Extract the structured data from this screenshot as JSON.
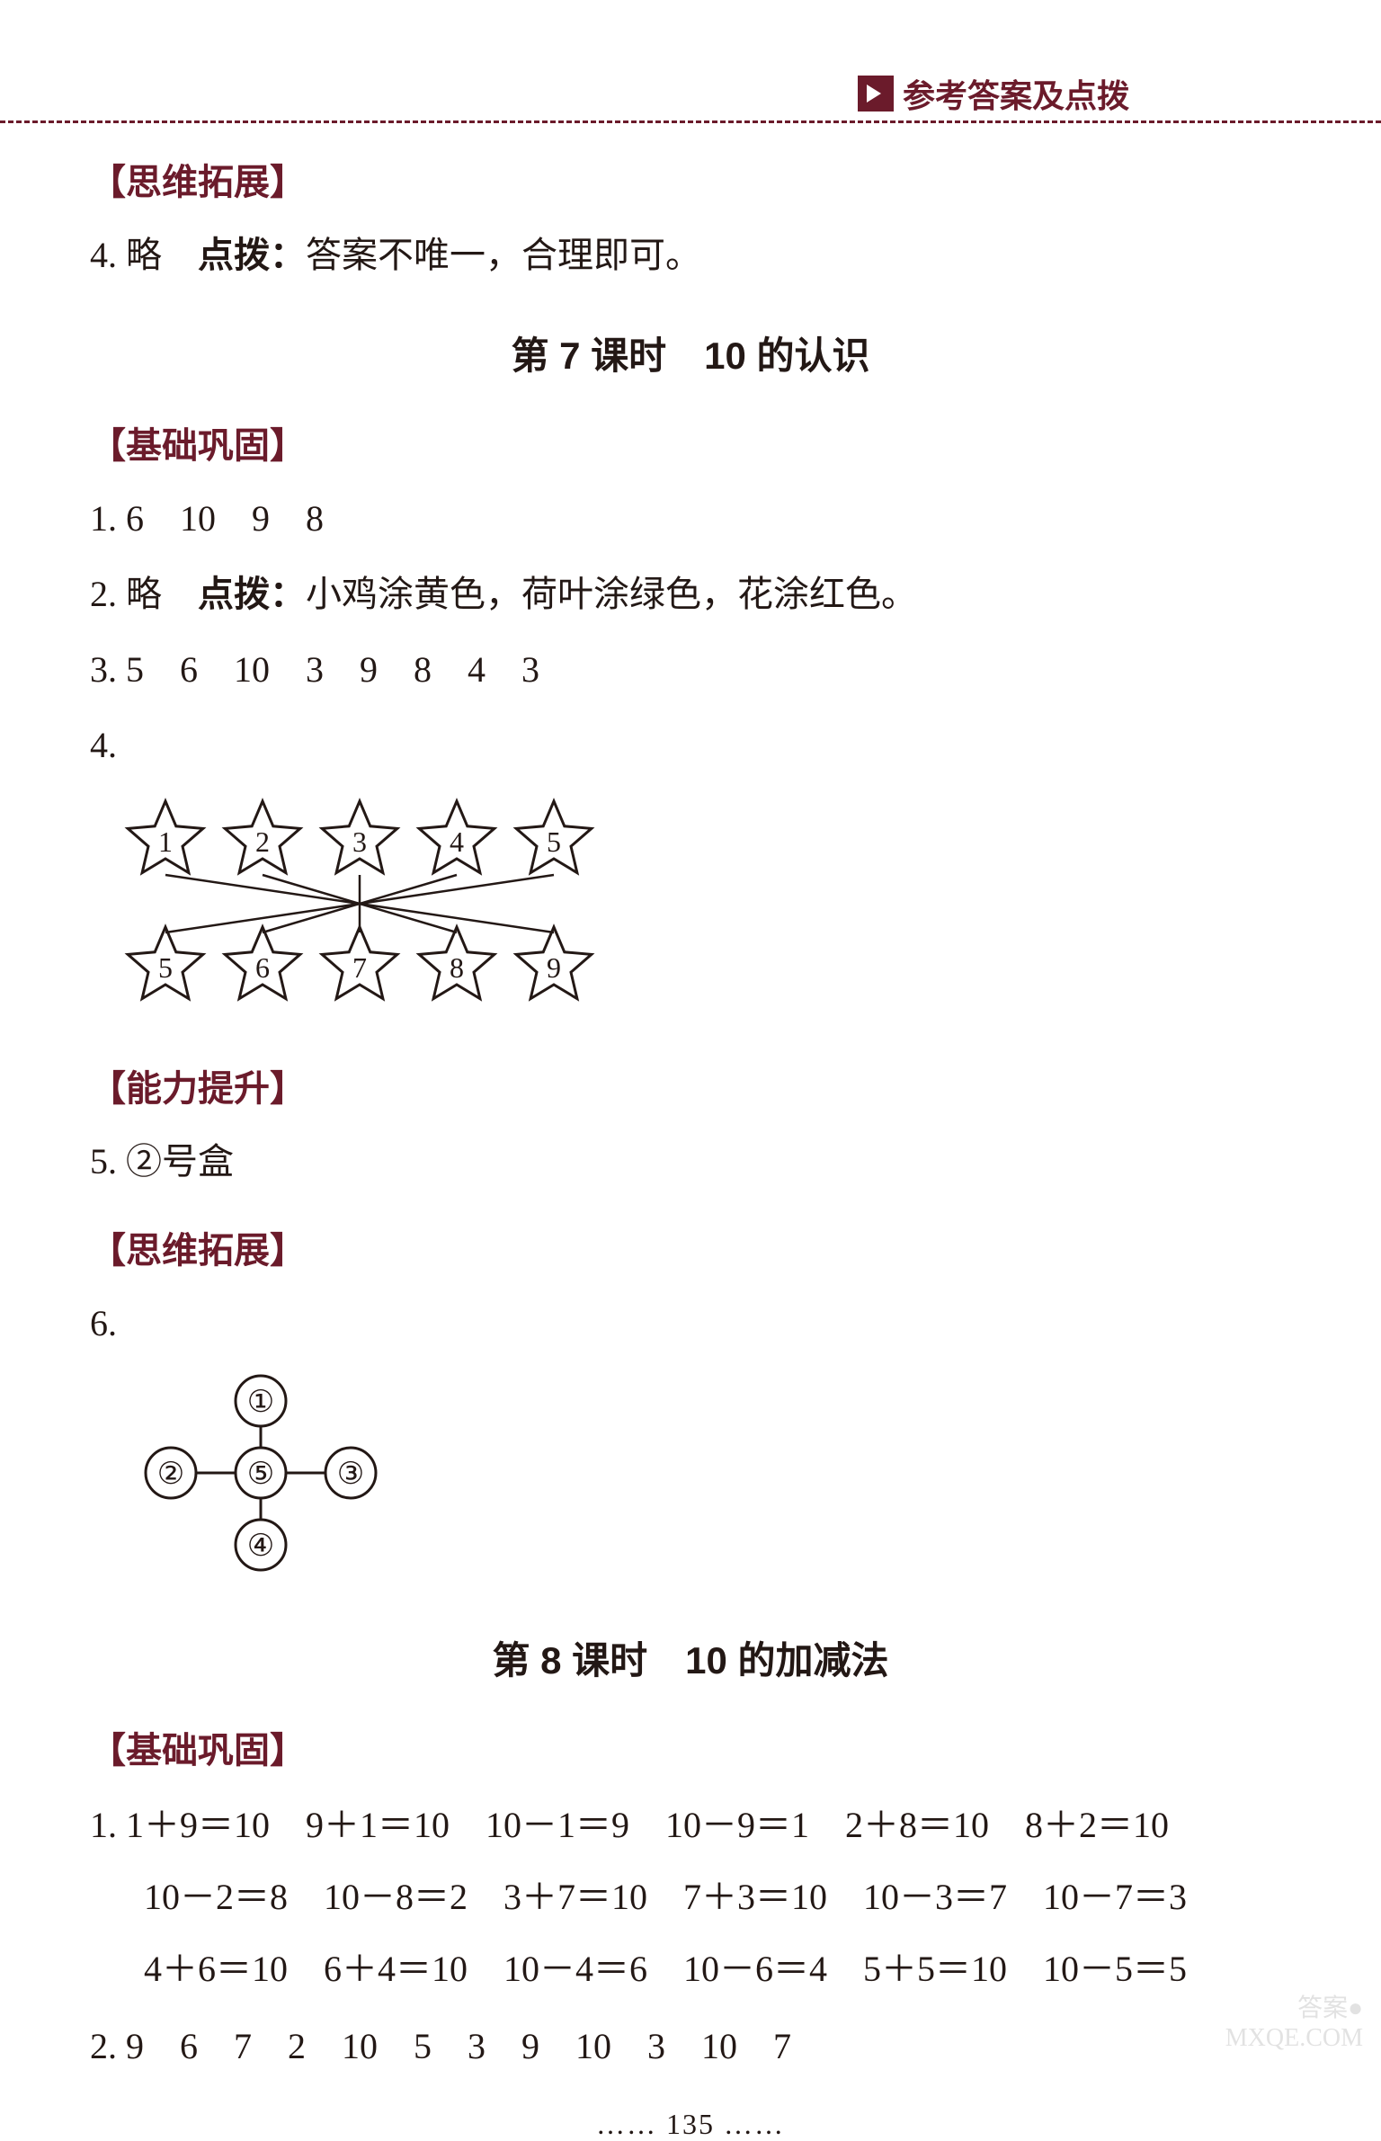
{
  "header": {
    "title": "参考答案及点拨"
  },
  "sections": {
    "s1_heading": "【思维拓展】",
    "s1_item4": "4. 略　",
    "s1_item4_bold": "点拨：",
    "s1_item4_rest": "答案不唯一，合理即可。",
    "lesson7_title": "第 7 课时　10 的认识",
    "s2_heading": "【基础巩固】",
    "s2_item1": "1. 6　10　9　8",
    "s2_item2": "2. 略　",
    "s2_item2_bold": "点拨：",
    "s2_item2_rest": "小鸡涂黄色，荷叶涂绿色，花涂红色。",
    "s2_item3": "3. 5　6　10　3　9　8　4　3",
    "s2_item4_label": "4.",
    "s3_heading": "【能力提升】",
    "s3_item5": "5. ②号盒",
    "s4_heading": "【思维拓展】",
    "s4_item6_label": "6.",
    "lesson8_title": "第 8 课时　10 的加减法",
    "s5_heading": "【基础巩固】",
    "eq": {
      "r1c1": "1. 1＋9＝10",
      "r1c2": "9＋1＝10",
      "r1c3": "10－1＝9",
      "r1c4": "10－9＝1",
      "r1c5": "2＋8＝10",
      "r1c6": "8＋2＝10",
      "r2c1": "10－2＝8",
      "r2c2": "10－8＝2",
      "r2c3": "3＋7＝10",
      "r2c4": "7＋3＝10",
      "r2c5": "10－3＝7",
      "r2c6": "10－7＝3",
      "r3c1": "4＋6＝10",
      "r3c2": "6＋4＝10",
      "r3c3": "10－4＝6",
      "r3c4": "10－6＝4",
      "r3c5": "5＋5＝10",
      "r3c6": "10－5＝5"
    },
    "s5_item2": "2. 9　6　7　2　10　5　3　9　10　3　10　7"
  },
  "diagram4": {
    "top": [
      "1",
      "2",
      "3",
      "4",
      "5"
    ],
    "bottom": [
      "5",
      "6",
      "7",
      "8",
      "9"
    ],
    "stroke": "#231815",
    "connections": [
      [
        0,
        4
      ],
      [
        1,
        3
      ],
      [
        2,
        2
      ],
      [
        3,
        1
      ],
      [
        4,
        0
      ]
    ]
  },
  "diagram6": {
    "nodes": {
      "top": "①",
      "left": "②",
      "center": "⑤",
      "right": "③",
      "bottom": "④"
    },
    "stroke": "#231815"
  },
  "page_number": "…… 135 ……",
  "watermark": {
    "line1": "答案●",
    "line2": "MXQE.COM"
  },
  "colors": {
    "accent": "#6b1b2b",
    "text": "#231815",
    "background": "#ffffff"
  }
}
